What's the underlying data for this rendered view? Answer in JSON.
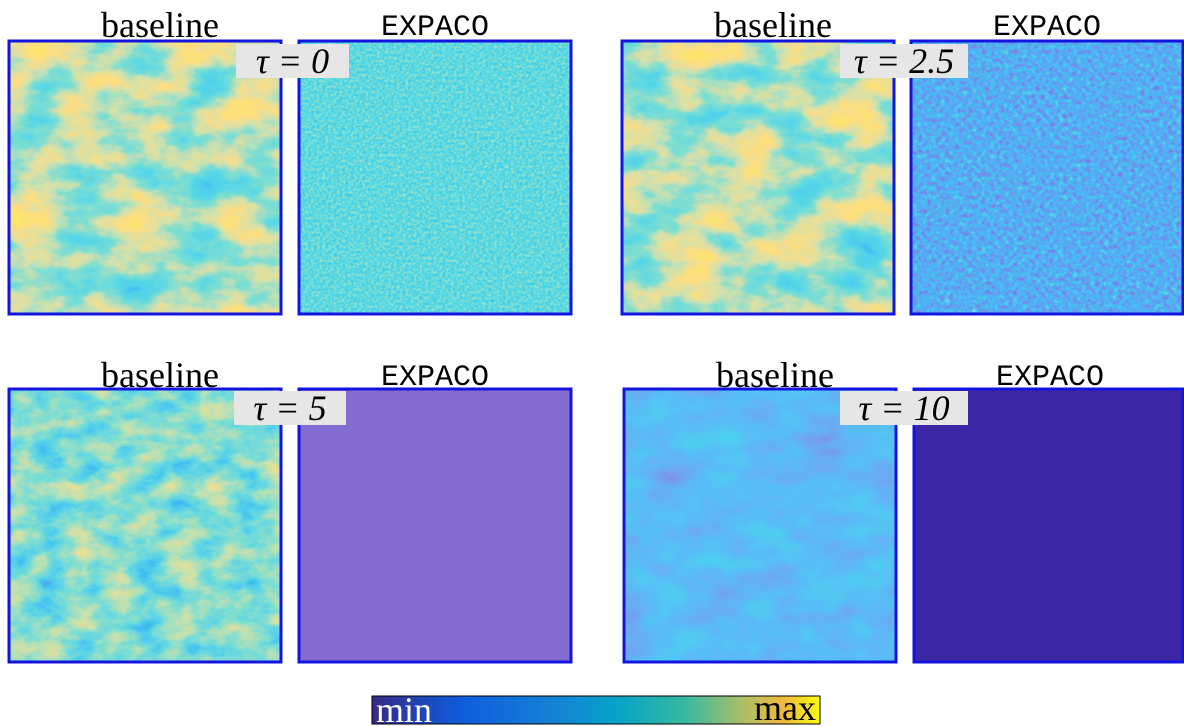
{
  "panels": [
    {
      "left_title": "baseline",
      "right_title": "EXPACO",
      "tau_label": "τ = 0"
    },
    {
      "left_title": "baseline",
      "right_title": "EXPACO",
      "tau_label": "τ = 2.5"
    },
    {
      "left_title": "baseline",
      "right_title": "EXPACO",
      "tau_label": "τ = 5"
    },
    {
      "left_title": "baseline",
      "right_title": "EXPACO",
      "tau_label": "τ = 10"
    }
  ],
  "colorbar": {
    "min_label": "min",
    "max_label": "max"
  }
}
